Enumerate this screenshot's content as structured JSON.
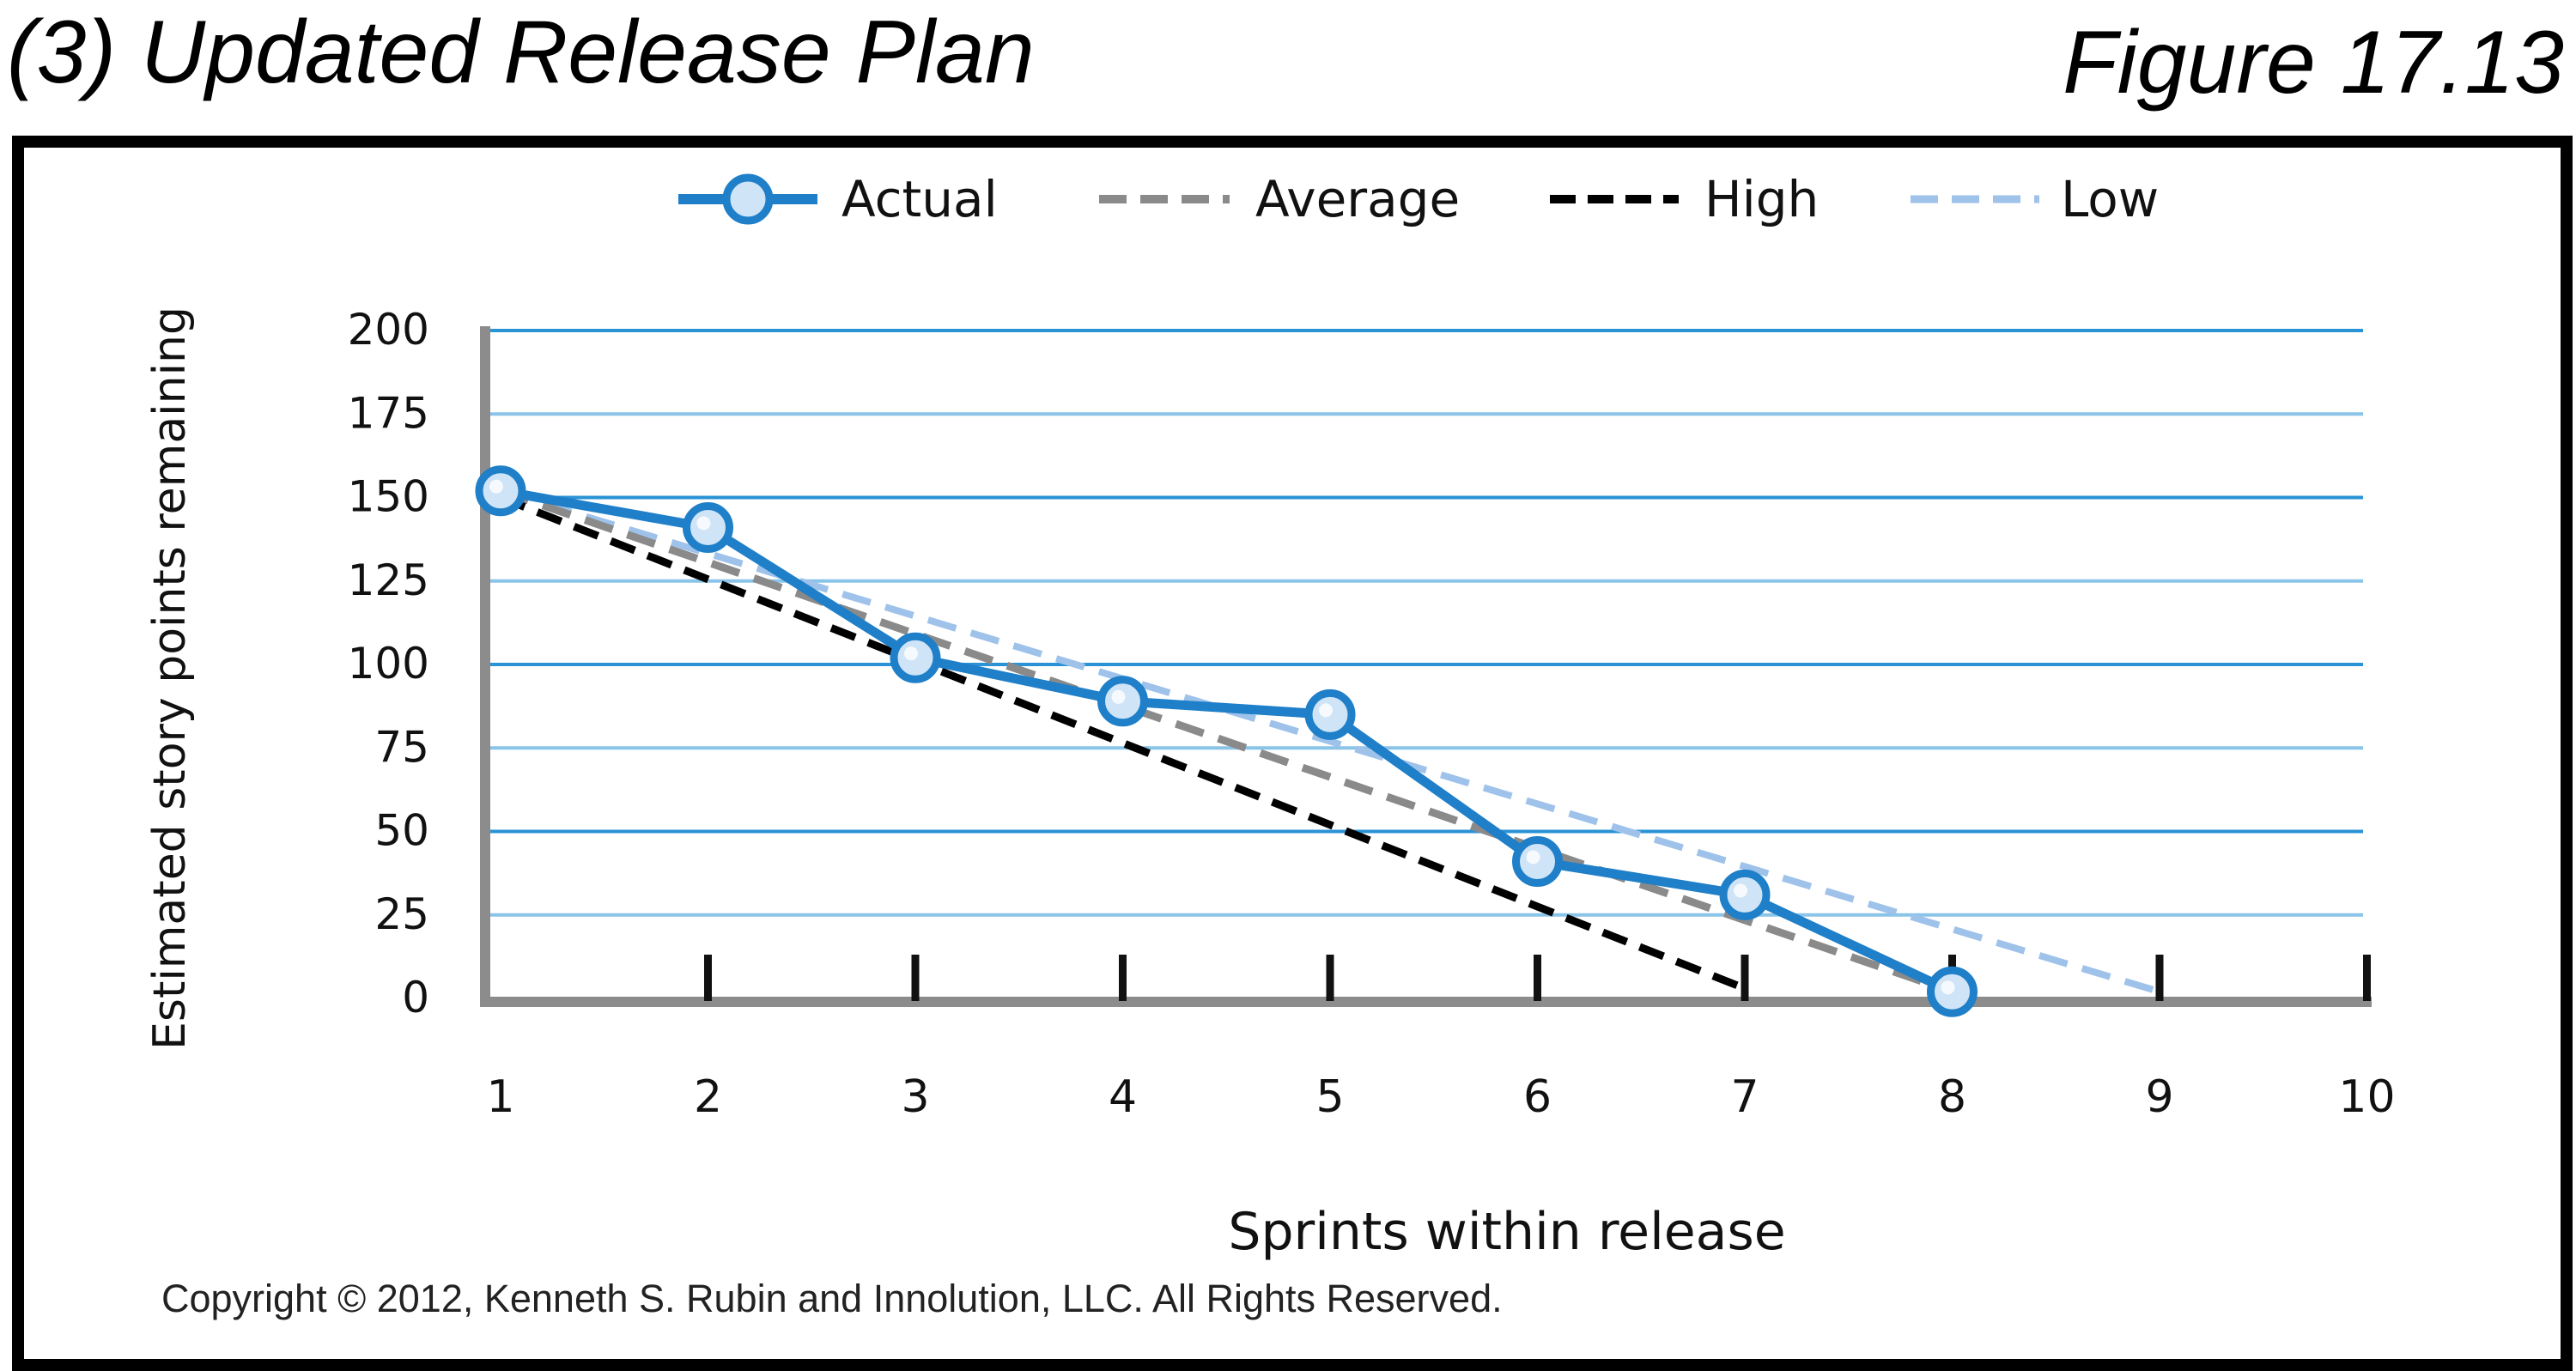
{
  "title": "(3) Updated Release Plan",
  "figure_label": "Figure 17.13",
  "copyright": "Copyright © 2012, Kenneth S. Rubin and Innolution, LLC. All Rights Reserved.",
  "colors": {
    "actual": "#1f7fc8",
    "average": "#8a8a8a",
    "high": "#000000",
    "low": "#9ec2ea",
    "gridline": "#2a93d5",
    "axis": "#8c8c8c"
  },
  "chart_data": {
    "type": "line",
    "xlabel": "Sprints within release",
    "ylabel": "Estimated story points remaining",
    "x_ticks": [
      1,
      2,
      3,
      4,
      5,
      6,
      7,
      8,
      9,
      10
    ],
    "y_ticks": [
      0,
      25,
      50,
      75,
      100,
      125,
      150,
      175,
      200
    ],
    "xlim": [
      1,
      10
    ],
    "ylim": [
      0,
      200
    ],
    "grid": true,
    "legend_position": "top",
    "series": [
      {
        "name": "Actual",
        "style": "solid-with-markers",
        "x": [
          1,
          2,
          3,
          4,
          5,
          6,
          7,
          8
        ],
        "y": [
          152,
          141,
          102,
          89,
          85,
          41,
          31,
          2
        ]
      },
      {
        "name": "Average",
        "style": "dashed",
        "x": [
          1,
          8
        ],
        "y": [
          152,
          2
        ]
      },
      {
        "name": "High",
        "style": "dashed",
        "x": [
          1,
          7
        ],
        "y": [
          150,
          3
        ]
      },
      {
        "name": "Low",
        "style": "dashed",
        "x": [
          1,
          9
        ],
        "y": [
          152,
          2
        ]
      }
    ]
  }
}
